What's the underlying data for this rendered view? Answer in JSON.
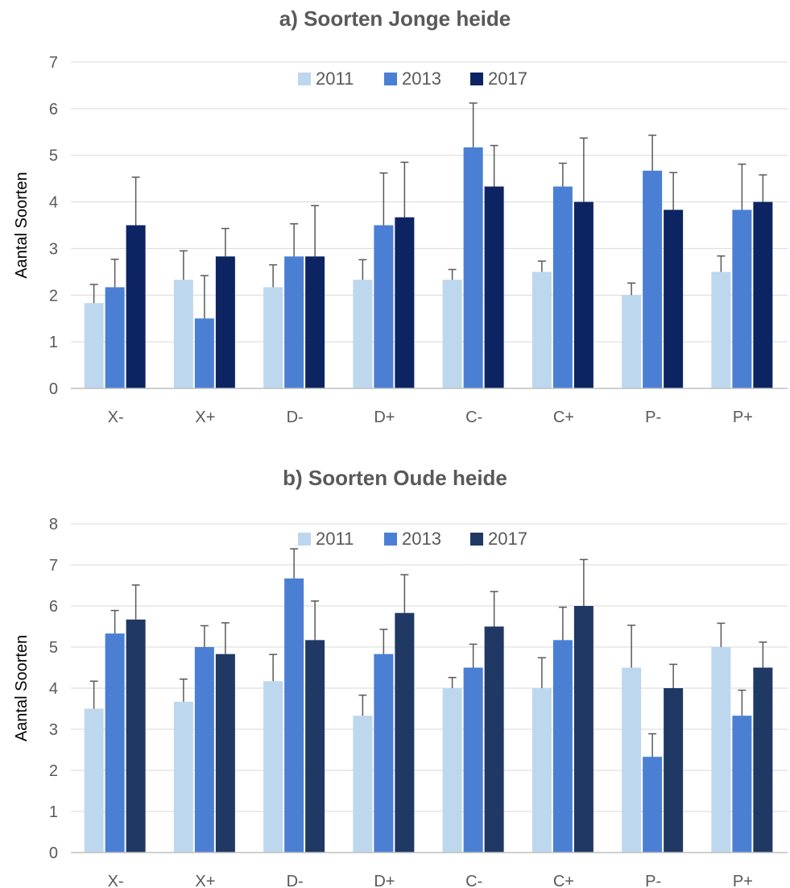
{
  "chart_data": [
    {
      "type": "bar",
      "title": "a) Soorten Jonge heide",
      "ylabel": "Aantal Soorten",
      "xlabel": "",
      "ylim": [
        0,
        7
      ],
      "yticks": [
        "0",
        "1",
        "2",
        "3",
        "4",
        "5",
        "6",
        "7"
      ],
      "grid": true,
      "legend_position": "top-center",
      "categories": [
        "X-",
        "X+",
        "D-",
        "D+",
        "C-",
        "C+",
        "P-",
        "P+"
      ],
      "series": [
        {
          "name": "2011",
          "color": "#bdd7ee",
          "values": [
            1.83,
            2.33,
            2.17,
            2.33,
            2.33,
            2.5,
            2.0,
            2.5
          ],
          "errors": [
            0.4,
            0.62,
            0.48,
            0.43,
            0.22,
            0.23,
            0.26,
            0.34
          ]
        },
        {
          "name": "2013",
          "color": "#4a7fd4",
          "values": [
            2.17,
            1.5,
            2.83,
            3.5,
            5.17,
            4.33,
            4.67,
            3.83
          ],
          "errors": [
            0.6,
            0.92,
            0.7,
            1.12,
            0.95,
            0.5,
            0.76,
            0.98
          ]
        },
        {
          "name": "2017",
          "color": "#0c2461",
          "values": [
            3.5,
            2.83,
            2.83,
            3.67,
            4.33,
            4.0,
            3.83,
            4.0
          ],
          "errors": [
            1.03,
            0.6,
            1.09,
            1.18,
            0.88,
            1.37,
            0.8,
            0.58
          ]
        }
      ]
    },
    {
      "type": "bar",
      "title": "b) Soorten Oude heide",
      "ylabel": "Aantal Soorten",
      "xlabel": "",
      "ylim": [
        0,
        8
      ],
      "yticks": [
        "0",
        "1",
        "2",
        "3",
        "4",
        "5",
        "6",
        "7",
        "8"
      ],
      "grid": true,
      "legend_position": "top-center",
      "categories": [
        "X-",
        "X+",
        "D-",
        "D+",
        "C-",
        "C+",
        "P-",
        "P+"
      ],
      "series": [
        {
          "name": "2011",
          "color": "#bdd7ee",
          "values": [
            3.5,
            3.67,
            4.17,
            3.33,
            4.0,
            4.0,
            4.5,
            5.0
          ],
          "errors": [
            0.67,
            0.55,
            0.65,
            0.5,
            0.26,
            0.74,
            1.03,
            0.58
          ]
        },
        {
          "name": "2013",
          "color": "#4a7fd4",
          "values": [
            5.33,
            5.0,
            6.67,
            4.83,
            4.5,
            5.17,
            2.33,
            3.33
          ],
          "errors": [
            0.56,
            0.52,
            0.72,
            0.6,
            0.57,
            0.8,
            0.56,
            0.62
          ]
        },
        {
          "name": "2017",
          "color": "#203864",
          "values": [
            5.67,
            4.83,
            5.17,
            5.83,
            5.5,
            6.0,
            4.0,
            4.5
          ],
          "errors": [
            0.84,
            0.76,
            0.95,
            0.93,
            0.85,
            1.13,
            0.58,
            0.62
          ]
        }
      ]
    }
  ]
}
